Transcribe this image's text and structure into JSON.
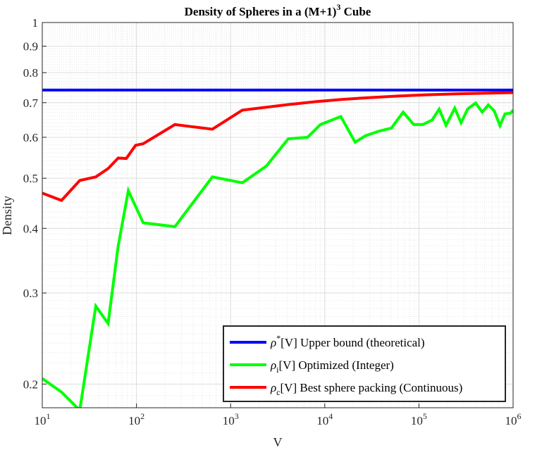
{
  "chart_data": {
    "type": "line",
    "title": "Density of Spheres in a (M+1)",
    "title_superscript": "3",
    "title_suffix": " Cube",
    "xlabel": "V",
    "ylabel": "Density",
    "xscale": "log",
    "yscale": "log",
    "xlim": [
      10,
      1000000
    ],
    "ylim": [
      0.18,
      1
    ],
    "grid": true,
    "x_ticks": [
      {
        "value": 10,
        "base": "10",
        "exp": "1"
      },
      {
        "value": 100,
        "base": "10",
        "exp": "2"
      },
      {
        "value": 1000,
        "base": "10",
        "exp": "3"
      },
      {
        "value": 10000,
        "base": "10",
        "exp": "4"
      },
      {
        "value": 100000,
        "base": "10",
        "exp": "5"
      },
      {
        "value": 1000000,
        "base": "10",
        "exp": "6"
      }
    ],
    "y_ticks": [
      {
        "value": 0.2,
        "label": "0.2"
      },
      {
        "value": 0.3,
        "label": "0.3"
      },
      {
        "value": 0.4,
        "label": "0.4"
      },
      {
        "value": 0.5,
        "label": "0.5"
      },
      {
        "value": 0.6,
        "label": "0.6"
      },
      {
        "value": 0.7,
        "label": "0.7"
      },
      {
        "value": 0.8,
        "label": "0.8"
      },
      {
        "value": 0.9,
        "label": "0.9"
      },
      {
        "value": 1,
        "label": "1"
      }
    ],
    "legend_position": "bottom-right",
    "series": [
      {
        "name": "upper-bound",
        "color": "#0000ff",
        "legend_symbol": "ρ",
        "legend_sup": "*",
        "legend_sub": "",
        "legend_text": "[V] Upper bound (theoretical)",
        "x": [
          10,
          1000000
        ],
        "y": [
          0.7405,
          0.7405
        ]
      },
      {
        "name": "optimized-integer",
        "color": "#00ff00",
        "legend_symbol": "ρ",
        "legend_sup": "",
        "legend_sub": "i",
        "legend_text": "[V] Optimized (Integer)",
        "x": [
          10,
          16,
          25,
          37,
          50,
          64,
          82,
          118,
          256,
          640,
          1331,
          2400,
          4096,
          6561,
          9000,
          14800,
          21000,
          27000,
          38000,
          51000,
          68000,
          88000,
          110000,
          138000,
          164000,
          194000,
          240000,
          280000,
          330000,
          400000,
          470000,
          545000,
          630000,
          725000,
          820000,
          940000,
          1000000
        ],
        "y": [
          0.205,
          0.193,
          0.178,
          0.283,
          0.262,
          0.37,
          0.473,
          0.41,
          0.403,
          0.503,
          0.49,
          0.528,
          0.596,
          0.6,
          0.635,
          0.658,
          0.587,
          0.604,
          0.617,
          0.625,
          0.671,
          0.635,
          0.635,
          0.648,
          0.68,
          0.633,
          0.683,
          0.64,
          0.681,
          0.699,
          0.671,
          0.693,
          0.675,
          0.632,
          0.666,
          0.668,
          0.677
        ]
      },
      {
        "name": "best-sphere-packing",
        "color": "#ff0000",
        "legend_symbol": "ρ",
        "legend_sup": "",
        "legend_sub": "c",
        "legend_text": "[V] Best sphere packing (Continuous)",
        "x": [
          10,
          16,
          25,
          37,
          50,
          64,
          78,
          98,
          118,
          256,
          640,
          1331,
          2400,
          4096,
          8000,
          15000,
          30000,
          60000,
          120000,
          250000,
          500000,
          1000000
        ],
        "y": [
          0.468,
          0.453,
          0.495,
          0.503,
          0.522,
          0.547,
          0.546,
          0.579,
          0.583,
          0.635,
          0.622,
          0.677,
          0.686,
          0.694,
          0.703,
          0.71,
          0.716,
          0.721,
          0.725,
          0.728,
          0.73,
          0.732
        ]
      }
    ]
  }
}
